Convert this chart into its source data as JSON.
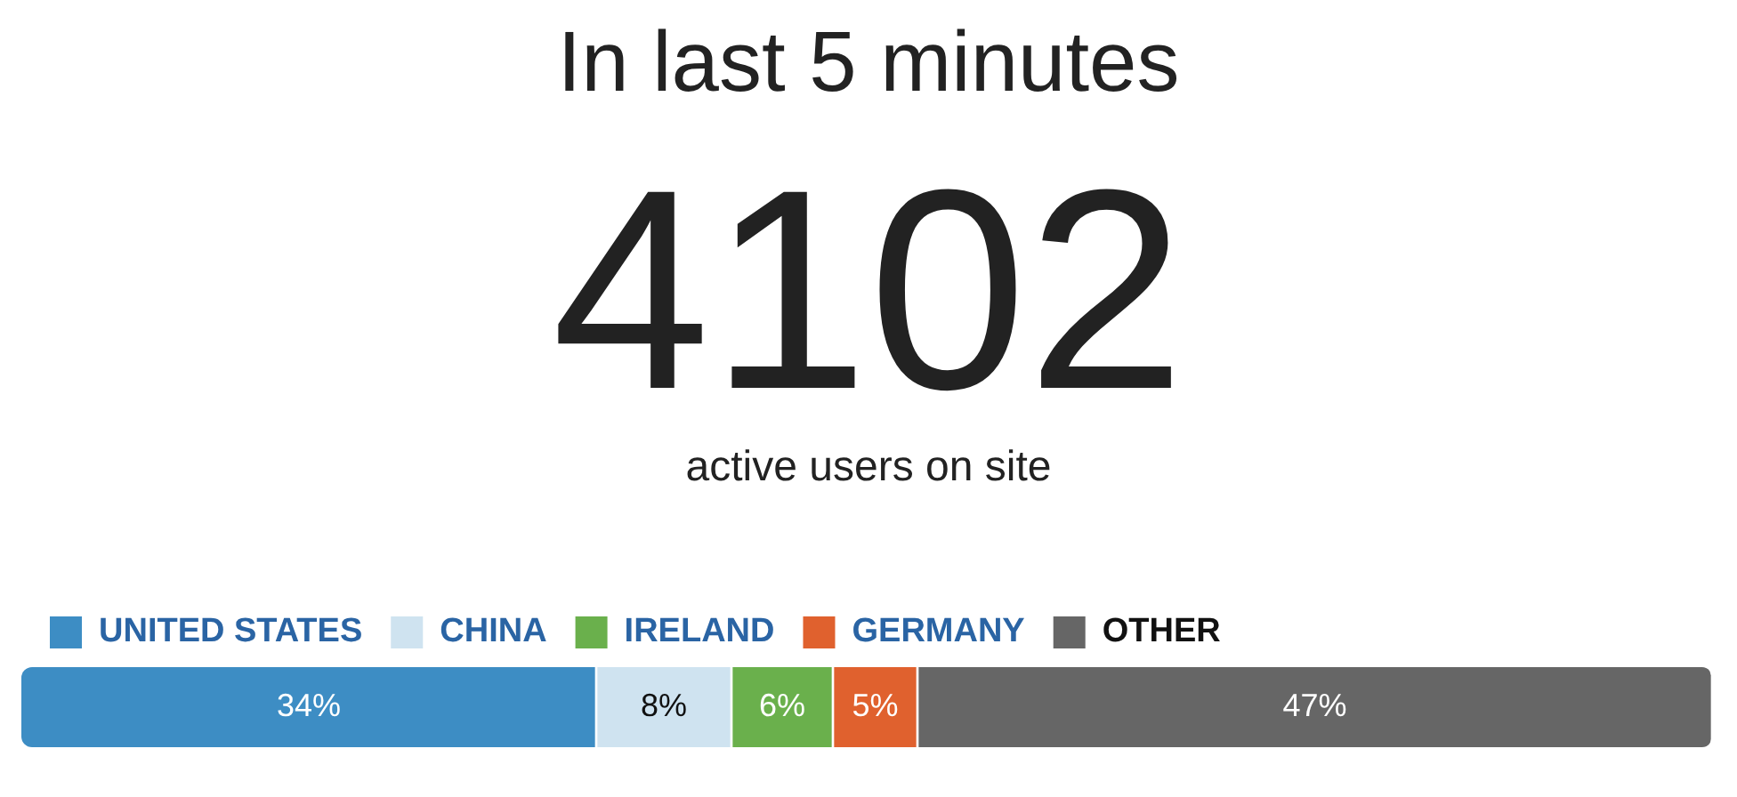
{
  "chart_data": {
    "type": "bar",
    "orientation": "horizontal",
    "stacked": true,
    "title": "In last 5 minutes",
    "annotations": [
      "4102",
      "active users on site"
    ],
    "categories": [
      null
    ],
    "series": [
      {
        "name": "UNITED STATES",
        "color": "#3d8dc4",
        "values": [
          34
        ],
        "value_labels": [
          "34%"
        ]
      },
      {
        "name": "CHINA",
        "color": "#cfe3f0",
        "values": [
          8
        ],
        "value_labels": [
          "8%"
        ]
      },
      {
        "name": "IRELAND",
        "color": "#6ab04c",
        "values": [
          6
        ],
        "value_labels": [
          "6%"
        ]
      },
      {
        "name": "GERMANY",
        "color": "#e0612e",
        "values": [
          5
        ],
        "value_labels": [
          "5%"
        ]
      },
      {
        "name": "OTHER",
        "color": "#666666",
        "values": [
          47
        ],
        "value_labels": [
          "47%"
        ]
      }
    ],
    "legend": "top left"
  }
}
